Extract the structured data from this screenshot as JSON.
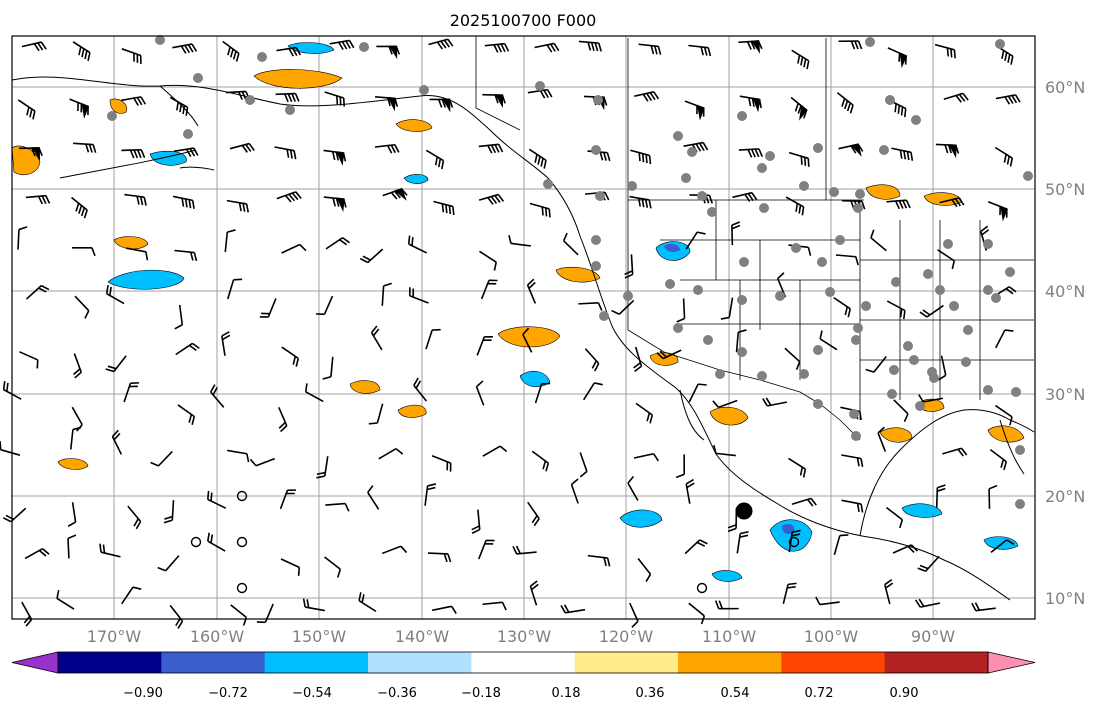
{
  "title": "2025100700 F000",
  "map": {
    "lon_range": [
      -180,
      -80
    ],
    "lat_range": [
      8,
      65
    ],
    "grid": true,
    "lat_labels": [
      "60°N",
      "50°N",
      "40°N",
      "30°N",
      "20°N",
      "10°N"
    ],
    "lon_labels": [
      "170°W",
      "160°W",
      "150°W",
      "140°W",
      "130°W",
      "120°W",
      "110°W",
      "100°W",
      "90°W"
    ],
    "positive_color": "#ffa500",
    "negative_color": "#00bfff",
    "station_color": "#808080"
  },
  "colorbar": {
    "tick_labels": [
      "−0.90",
      "−0.72",
      "−0.54",
      "−0.36",
      "−0.18",
      "0.18",
      "0.36",
      "0.54",
      "0.72",
      "0.90"
    ],
    "colors": [
      "#9932cc",
      "#00008b",
      "#3a5fcd",
      "#00bfff",
      "#b0e2ff",
      "#ffffff",
      "#ffec8b",
      "#ffa500",
      "#ff4500",
      "#b22222",
      "#ff8fb0"
    ]
  }
}
